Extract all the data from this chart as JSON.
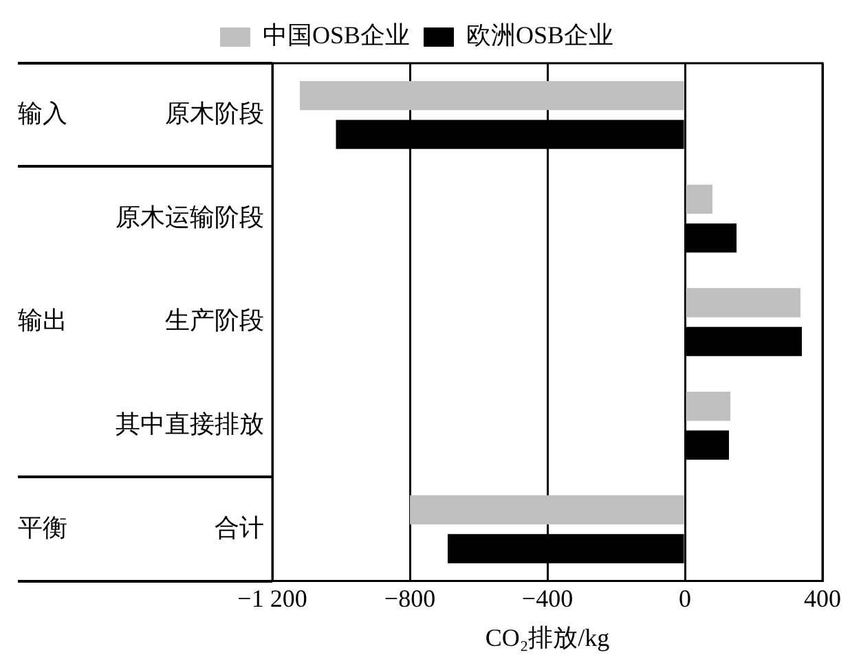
{
  "chart_data": {
    "type": "bar",
    "orientation": "horizontal",
    "categories": [
      "原木阶段",
      "原木运输阶段",
      "生产阶段",
      "其中直接排放",
      "合计"
    ],
    "series": [
      {
        "name": "中国OSB企业",
        "color": "#c0c0c0",
        "values": [
          -1120,
          80,
          336,
          132,
          -800
        ]
      },
      {
        "name": "欧洲OSB企业",
        "color": "#000000",
        "values": [
          -1015,
          150,
          340,
          128,
          -690
        ]
      }
    ],
    "xlim": [
      -1200,
      400
    ],
    "xticks": [
      {
        "value": -1200,
        "label": "−1 200"
      },
      {
        "value": -800,
        "label": "−800"
      },
      {
        "value": -400,
        "label": "−400"
      },
      0,
      400
    ],
    "xlabel": "CO₂排放/kg",
    "annotations": [
      "输入",
      "输出",
      "平衡"
    ],
    "grid": "x",
    "legend": "top"
  }
}
